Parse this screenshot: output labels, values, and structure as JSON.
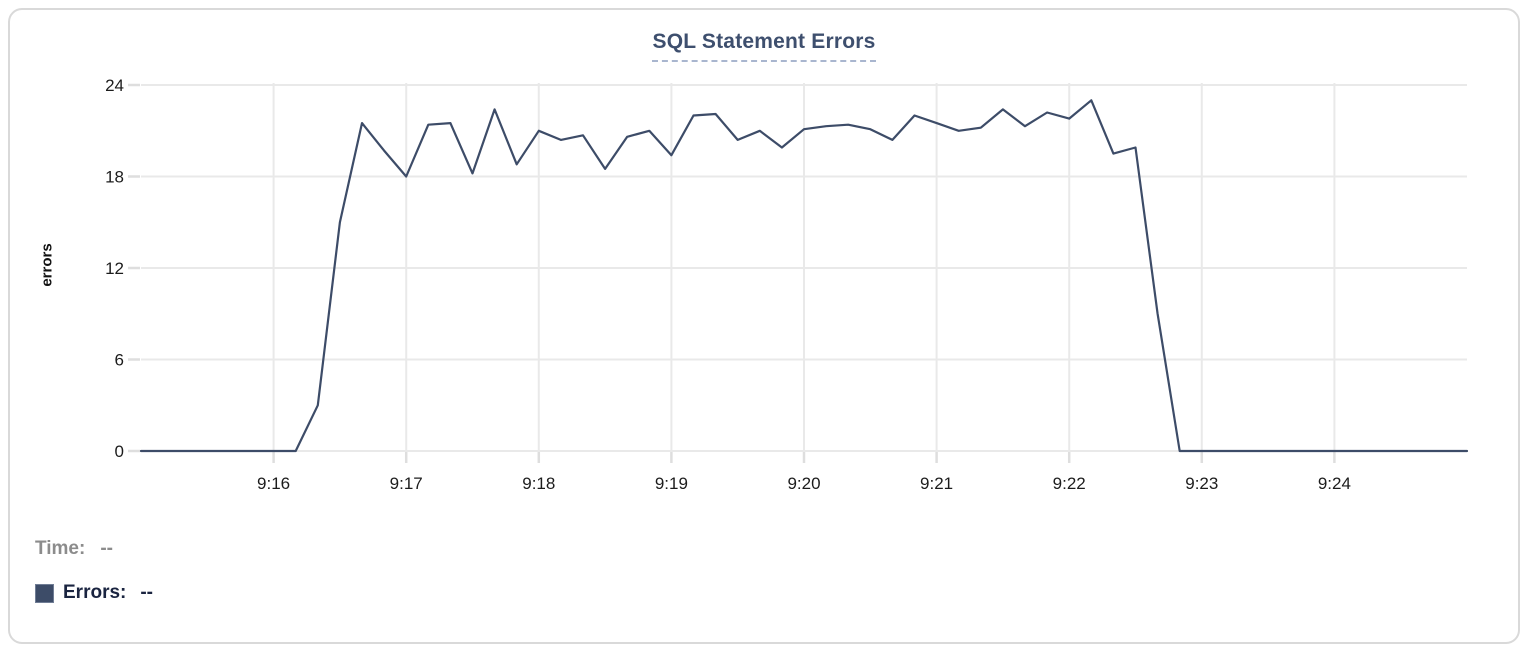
{
  "card": {
    "title": "SQL Statement Errors"
  },
  "readouts": {
    "time_label": "Time:",
    "time_value": "--",
    "errors_label": "Errors:",
    "errors_value": "--"
  },
  "colors": {
    "line": "#3d4c68",
    "title": "#3e4f6e",
    "title_underline": "#a9b6cf",
    "grid": "#e9e9e9",
    "tick_stub": "#dedede",
    "axis_text": "#1c1c1c",
    "time_text": "#8c8c8c",
    "errors_text": "#1a2440",
    "legend_square": "#3d4c68",
    "card_border": "#d9d9d9"
  },
  "chart_data": {
    "type": "line",
    "title": "SQL Statement Errors",
    "xlabel": "",
    "ylabel": "errors",
    "ylim": [
      0,
      24
    ],
    "y_ticks": [
      0,
      6,
      12,
      18,
      24
    ],
    "x_ticks": [
      "9:16",
      "9:17",
      "9:18",
      "9:19",
      "9:20",
      "9:21",
      "9:22",
      "9:23",
      "9:24"
    ],
    "x_range": [
      "9:15:00",
      "9:25:00"
    ],
    "grid": true,
    "legend_position": "below-left",
    "series": [
      {
        "name": "Errors",
        "x": [
          "9:15:00",
          "9:15:10",
          "9:15:20",
          "9:15:30",
          "9:15:40",
          "9:15:50",
          "9:16:00",
          "9:16:10",
          "9:16:20",
          "9:16:30",
          "9:16:40",
          "9:16:50",
          "9:17:00",
          "9:17:10",
          "9:17:20",
          "9:17:30",
          "9:17:40",
          "9:17:50",
          "9:18:00",
          "9:18:10",
          "9:18:20",
          "9:18:30",
          "9:18:40",
          "9:18:50",
          "9:19:00",
          "9:19:10",
          "9:19:20",
          "9:19:30",
          "9:19:40",
          "9:19:50",
          "9:20:00",
          "9:20:10",
          "9:20:20",
          "9:20:30",
          "9:20:40",
          "9:20:50",
          "9:21:00",
          "9:21:10",
          "9:21:20",
          "9:21:30",
          "9:21:40",
          "9:21:50",
          "9:22:00",
          "9:22:10",
          "9:22:20",
          "9:22:30",
          "9:22:40",
          "9:22:50",
          "9:23:00",
          "9:23:10",
          "9:23:20",
          "9:23:30",
          "9:23:40",
          "9:23:50",
          "9:24:00",
          "9:24:10",
          "9:24:20",
          "9:24:30",
          "9:24:40",
          "9:24:50",
          "9:25:00"
        ],
        "values": [
          0,
          0,
          0,
          0,
          0,
          0,
          0,
          0,
          3,
          15,
          21.5,
          19.7,
          18,
          21.4,
          21.5,
          18.2,
          22.4,
          18.8,
          21,
          20.4,
          20.7,
          18.5,
          20.6,
          21,
          19.4,
          22,
          22.1,
          20.4,
          21,
          19.9,
          21.1,
          21.3,
          21.4,
          21.1,
          20.4,
          22,
          21.5,
          21,
          21.2,
          22.4,
          21.3,
          22.2,
          21.8,
          23,
          19.5,
          19.9,
          9,
          0,
          0,
          0,
          0,
          0,
          0,
          0,
          0,
          0,
          0,
          0,
          0,
          0,
          0
        ]
      }
    ]
  }
}
